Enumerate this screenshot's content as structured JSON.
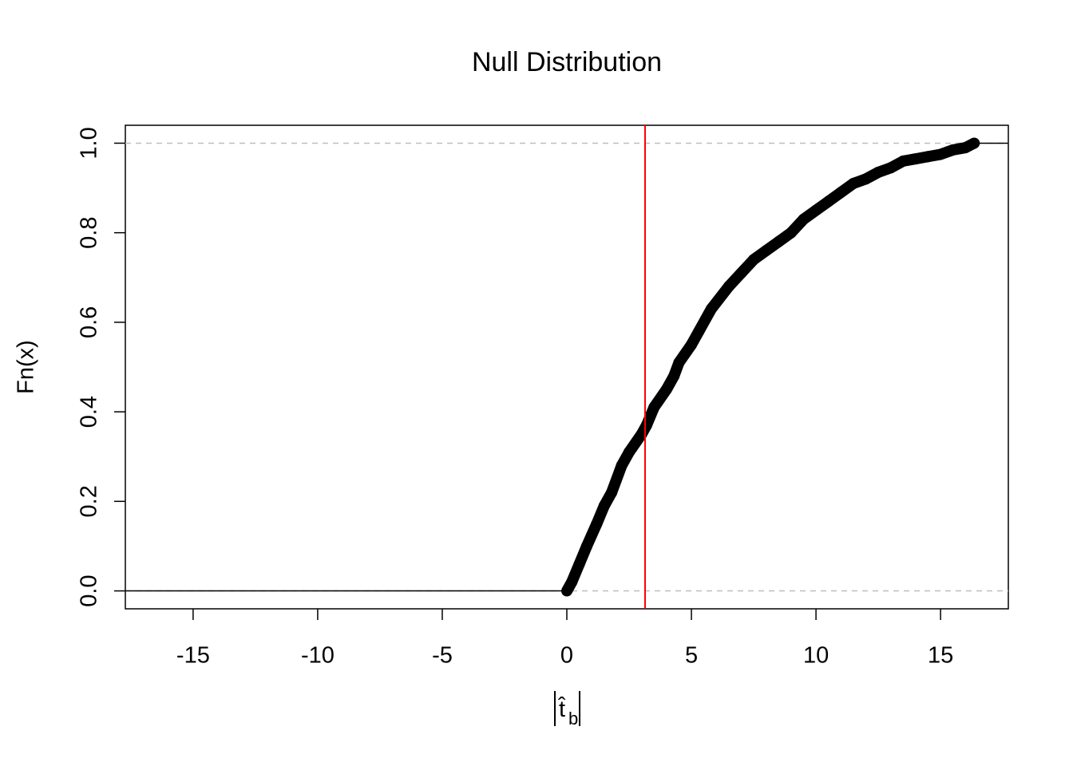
{
  "chart_data": {
    "type": "ecdf",
    "title": "Null Distribution",
    "x_label": "t̂",
    "x_label_subscript": "b",
    "y_label": "Fn(x)",
    "x": [
      0,
      0.2,
      0.5,
      0.8,
      1.2,
      1.5,
      1.8,
      2.2,
      2.5,
      3,
      3.2,
      3.5,
      4,
      4.3,
      4.5,
      5,
      5.3,
      5.8,
      6.5,
      7,
      7.5,
      8,
      8.5,
      9,
      9.5,
      10,
      10.5,
      11,
      11.5,
      12,
      12.5,
      13,
      13.5,
      14,
      14.5,
      15,
      15.5,
      16,
      16.35
    ],
    "values": [
      0,
      0.02,
      0.06,
      0.1,
      0.15,
      0.19,
      0.22,
      0.28,
      0.31,
      0.35,
      0.37,
      0.41,
      0.45,
      0.48,
      0.51,
      0.55,
      0.58,
      0.63,
      0.68,
      0.71,
      0.74,
      0.76,
      0.78,
      0.8,
      0.83,
      0.85,
      0.87,
      0.89,
      0.91,
      0.92,
      0.935,
      0.945,
      0.96,
      0.965,
      0.97,
      0.975,
      0.985,
      0.99,
      1.0
    ],
    "color": "#000000",
    "vline": 3.14,
    "vline_color": "#ff0000",
    "hlines": [
      0,
      1
    ],
    "hline_color": "#bebebe",
    "xlim": [
      -17.72,
      17.72
    ],
    "xticks": [
      -15,
      -10,
      -5,
      0,
      5,
      10,
      15
    ],
    "ylim": [
      -0.04,
      1.04
    ],
    "yticks": [
      {
        "value": 0,
        "label": "0.0"
      },
      0.2,
      0.4,
      0.6,
      0.8,
      {
        "value": 1,
        "label": "1.0"
      }
    ]
  }
}
